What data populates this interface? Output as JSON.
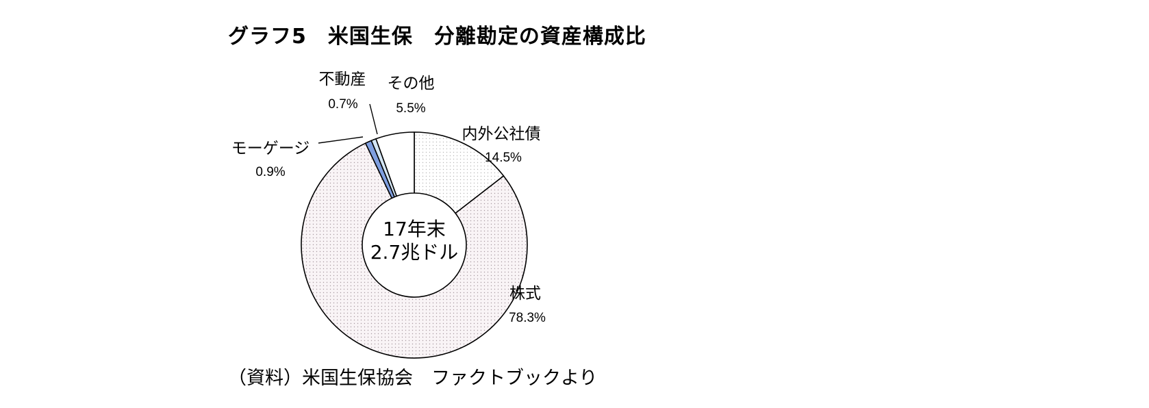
{
  "title": "グラフ5　米国生保　分離勘定の資産構成比",
  "source": "（資料）米国生保協会　ファクトブックより",
  "chart_data": {
    "type": "pie",
    "donut": true,
    "start": "12 o'clock",
    "direction": "clockwise",
    "center_label": [
      "17年末",
      "2.7兆ドル"
    ],
    "slices": [
      {
        "name": "内外公社債",
        "value": 14.5,
        "label": "14.5%",
        "fill": "dots-light"
      },
      {
        "name": "株式",
        "value": 78.3,
        "label": "78.3%",
        "fill": "dots-pink"
      },
      {
        "name": "モーゲージ",
        "value": 0.9,
        "label": "0.9%",
        "fill": "blue"
      },
      {
        "name": "不動産",
        "value": 0.7,
        "label": "0.7%",
        "fill": "light-blue"
      },
      {
        "name": "その他",
        "value": 5.5,
        "label": "5.5%",
        "fill": "white"
      }
    ],
    "colors": {
      "blue": "#7f9fe0",
      "light-blue": "#d4e6f5",
      "white": "#ffffff",
      "dots-light": "#f4f4f4",
      "dots-pink": "#f3eef0",
      "edge": "#000000"
    }
  }
}
